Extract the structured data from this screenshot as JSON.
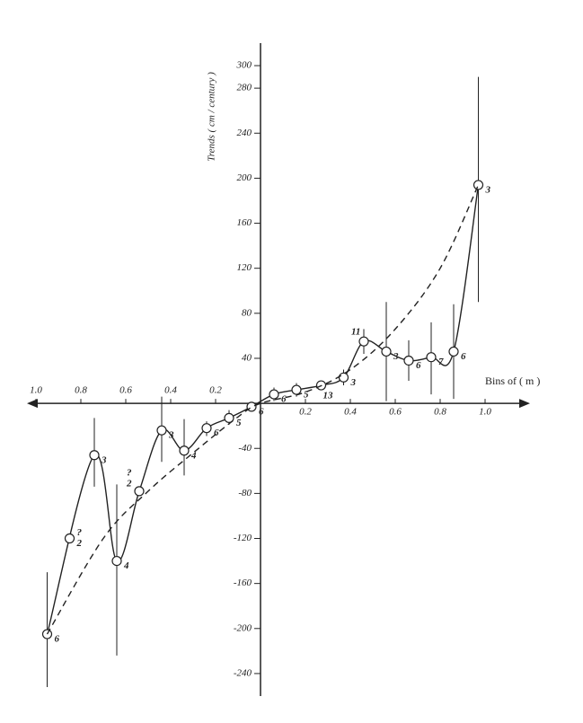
{
  "chart_data": {
    "type": "line",
    "y_label": "Trends ( cm / century )",
    "x_label": "Bins of ( m )",
    "xlim": [
      -1.04,
      1.2
    ],
    "ylim": [
      -260,
      320
    ],
    "xticks": [
      {
        "value": -1.0,
        "label": "1.0"
      },
      {
        "value": -0.8,
        "label": "0.8"
      },
      {
        "value": -0.6,
        "label": "0.6"
      },
      {
        "value": -0.4,
        "label": "0.4"
      },
      {
        "value": -0.2,
        "label": "0.2"
      },
      0.2,
      0.4,
      0.6,
      0.8,
      {
        "value": 1.0,
        "label": "1.0"
      }
    ],
    "yticks": [
      -240,
      -200,
      -160,
      -120,
      -80,
      -40,
      40,
      80,
      120,
      160,
      200,
      240,
      280,
      300
    ],
    "color": "#222222",
    "series": [
      {
        "style": "solid",
        "x": [
          -0.95,
          -0.74,
          -0.64,
          -0.54,
          -0.44,
          -0.34,
          -0.24,
          -0.14,
          -0.04,
          0.06,
          0.16,
          0.27,
          0.37,
          0.46,
          0.56,
          0.66,
          0.76,
          0.86,
          0.97
        ],
        "values": [
          -205,
          -46,
          -140,
          -78,
          -24,
          -42,
          -22,
          -13,
          -3,
          8,
          12,
          16,
          23,
          55,
          46,
          38,
          41,
          46,
          194
        ],
        "error_low": [
          -252,
          -74,
          -224,
          null,
          -52,
          -64,
          -29,
          -19,
          null,
          2,
          6,
          null,
          16,
          44,
          2,
          20,
          8,
          4,
          90
        ],
        "error_high": [
          -150,
          -13,
          -72,
          null,
          6,
          -14,
          -16,
          -6,
          null,
          14,
          18,
          null,
          30,
          66,
          90,
          56,
          72,
          88,
          290
        ],
        "labels": [
          "6",
          "3",
          "4",
          "2",
          "3",
          "4",
          "6",
          "5",
          "6",
          "6",
          "5",
          "13",
          "3",
          "11",
          "3",
          "6",
          "7",
          "6",
          "3"
        ],
        "notes": [
          null,
          null,
          null,
          "?",
          null,
          null,
          null,
          null,
          null,
          null,
          null,
          null,
          null,
          null,
          null,
          null,
          null,
          null,
          null
        ]
      },
      {
        "style": "dashed",
        "x": [
          -0.95,
          -0.7,
          -0.5,
          -0.3,
          -0.1,
          0,
          0.2,
          0.4,
          0.6,
          0.8,
          0.97
        ],
        "values": [
          -205,
          -120,
          -78,
          -44,
          -12,
          0,
          10,
          30,
          66,
          120,
          194
        ]
      },
      {
        "style": "points",
        "x": [
          -0.85
        ],
        "values": [
          -120
        ],
        "labels": [
          "2"
        ],
        "notes": [
          "?"
        ]
      }
    ]
  }
}
